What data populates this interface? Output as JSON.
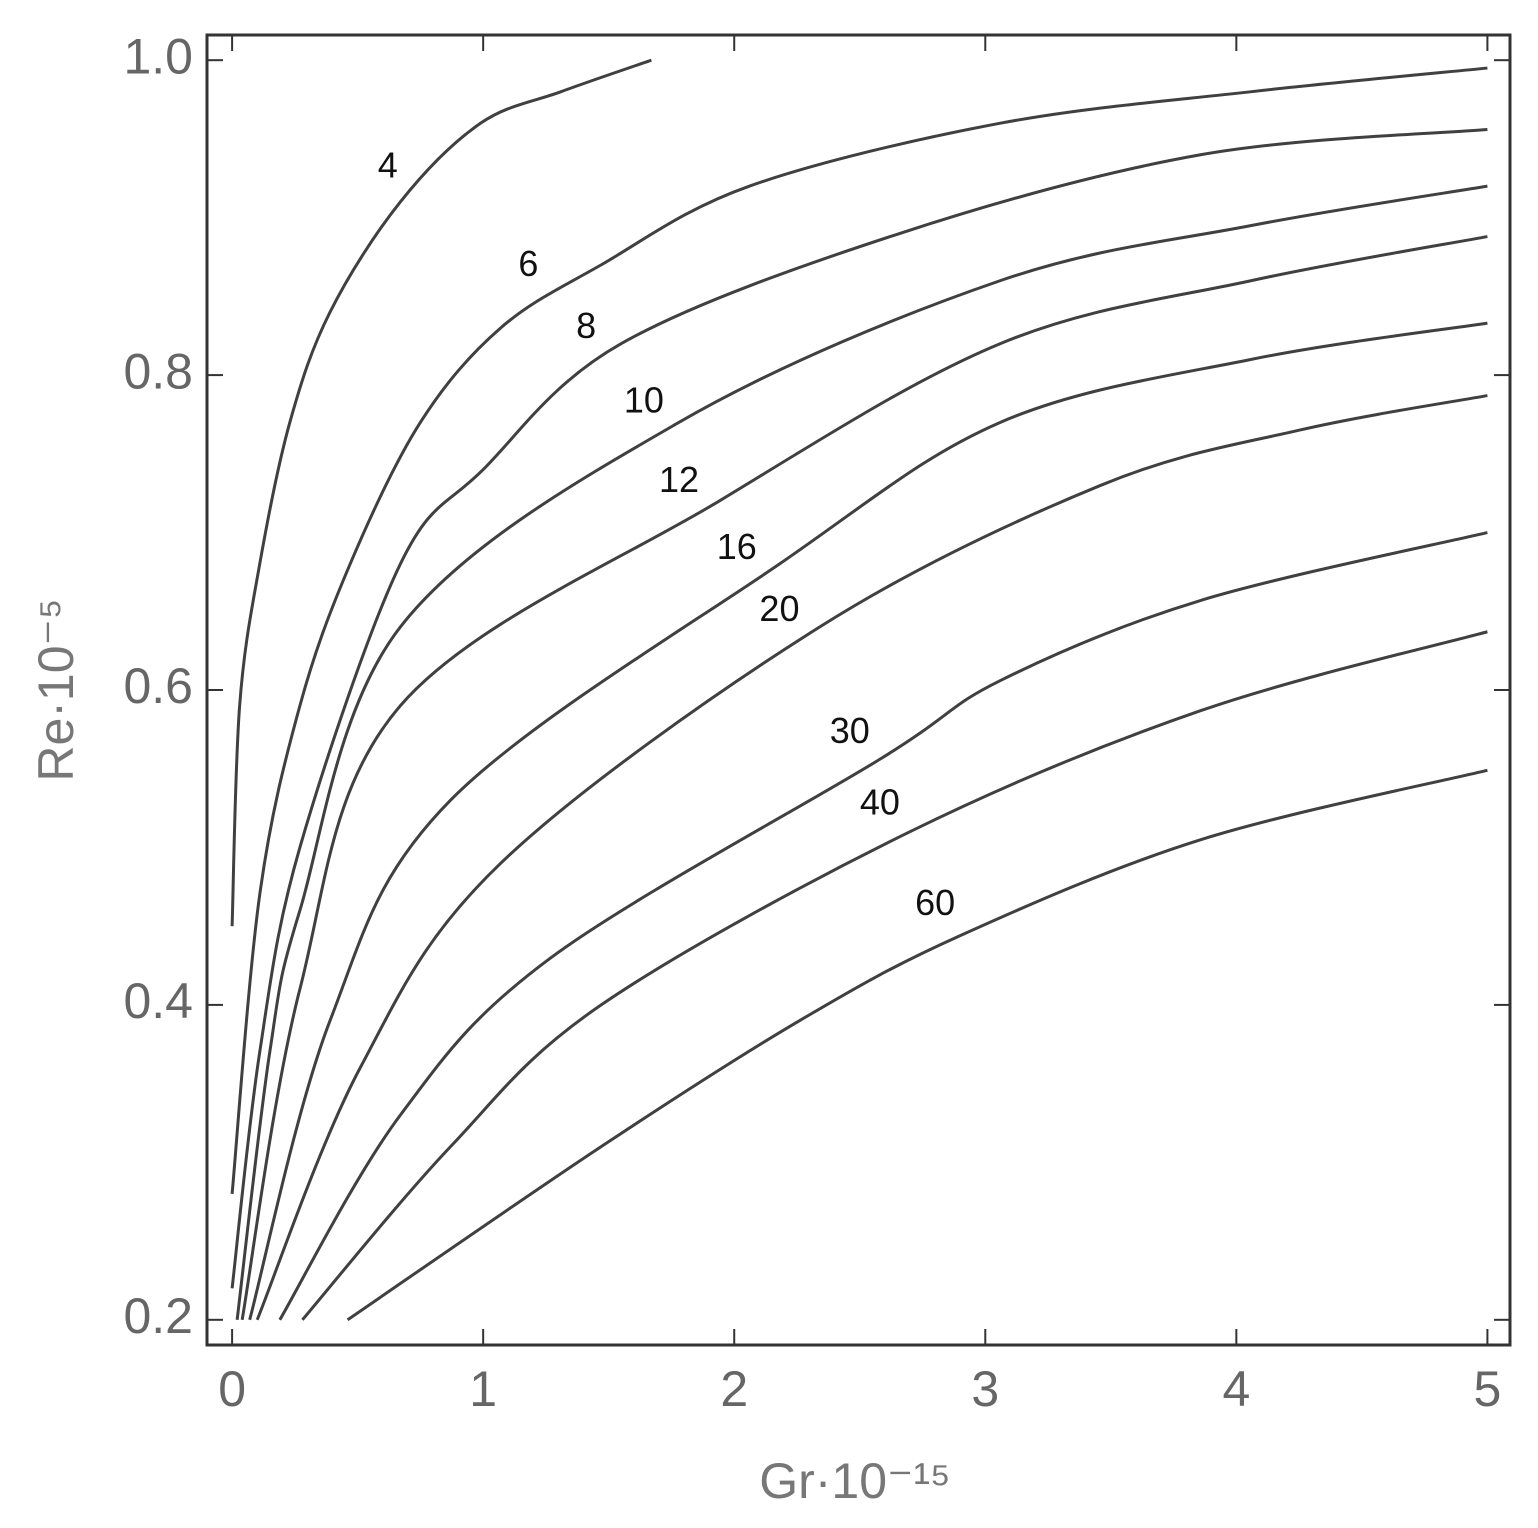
{
  "chart_data": {
    "type": "line",
    "x_label": "Gr·10⁻¹⁵",
    "y_label": "Re·10⁻⁵",
    "xlim": [
      -0.1,
      5.09
    ],
    "ylim": [
      0.184,
      1.016
    ],
    "xticks": [
      0,
      1,
      2,
      3,
      4,
      5
    ],
    "yticks": [
      0.2,
      0.4,
      0.6,
      0.8,
      {
        "value": 1,
        "label": "1.0"
      }
    ],
    "series": [
      {
        "name": "4",
        "color": "#404040",
        "x": [
          0,
          0.03,
          0.11,
          0.23,
          0.39,
          0.67,
          0.99,
          1.31,
          1.67
        ],
        "values": [
          0.45,
          0.59,
          0.68,
          0.77,
          0.84,
          0.91,
          0.96,
          0.98,
          1.0
        ]
      },
      {
        "name": "6",
        "color": "#404040",
        "x": [
          0,
          0.11,
          0.27,
          0.47,
          0.75,
          1.07,
          1.47,
          2.06,
          3.06,
          4.06,
          5
        ],
        "values": [
          0.28,
          0.47,
          0.59,
          0.68,
          0.77,
          0.83,
          0.87,
          0.92,
          0.96,
          0.98,
          0.995
        ]
      },
      {
        "name": "8",
        "color": "#404040",
        "x": [
          0,
          0.11,
          0.27,
          0.67,
          1.0,
          1.55,
          2.66,
          3.86,
          5
        ],
        "values": [
          0.22,
          0.37,
          0.5,
          0.68,
          0.74,
          0.82,
          0.89,
          0.94,
          0.956
        ]
      },
      {
        "name": "10",
        "color": "#404040",
        "x": [
          0.02,
          0.15,
          0.27,
          0.67,
          1.78,
          3.06,
          4.06,
          5
        ],
        "values": [
          0.2,
          0.37,
          0.46,
          0.64,
          0.77,
          0.86,
          0.895,
          0.92
        ]
      },
      {
        "name": "12",
        "color": "#404040",
        "x": [
          0.04,
          0.27,
          0.67,
          1.94,
          3.06,
          4.06,
          5
        ],
        "values": [
          0.2,
          0.41,
          0.59,
          0.72,
          0.82,
          0.86,
          0.888
        ]
      },
      {
        "name": "16",
        "color": "#404040",
        "x": [
          0.07,
          0.39,
          0.87,
          2.18,
          3.06,
          4.06,
          5
        ],
        "values": [
          0.2,
          0.39,
          0.53,
          0.68,
          0.77,
          0.81,
          0.833
        ]
      },
      {
        "name": "20",
        "color": "#404040",
        "x": [
          0.1,
          0.51,
          1.07,
          2.34,
          3.46,
          4.25,
          5
        ],
        "values": [
          0.2,
          0.36,
          0.49,
          0.64,
          0.73,
          0.765,
          0.787
        ]
      },
      {
        "name": "30",
        "color": "#404040",
        "x": [
          0.19,
          0.67,
          1.27,
          2.58,
          3.06,
          3.86,
          5
        ],
        "values": [
          0.2,
          0.33,
          0.43,
          0.556,
          0.606,
          0.657,
          0.7
        ]
      },
      {
        "name": "40",
        "color": "#404040",
        "x": [
          0.28,
          0.87,
          1.47,
          2.7,
          3.86,
          5
        ],
        "values": [
          0.2,
          0.31,
          0.4,
          0.51,
          0.587,
          0.637
        ]
      },
      {
        "name": "60",
        "color": "#404040",
        "x": [
          0.46,
          1.47,
          2.26,
          2.9,
          3.86,
          5
        ],
        "values": [
          0.2,
          0.31,
          0.39,
          0.444,
          0.505,
          0.549
        ]
      }
    ]
  }
}
